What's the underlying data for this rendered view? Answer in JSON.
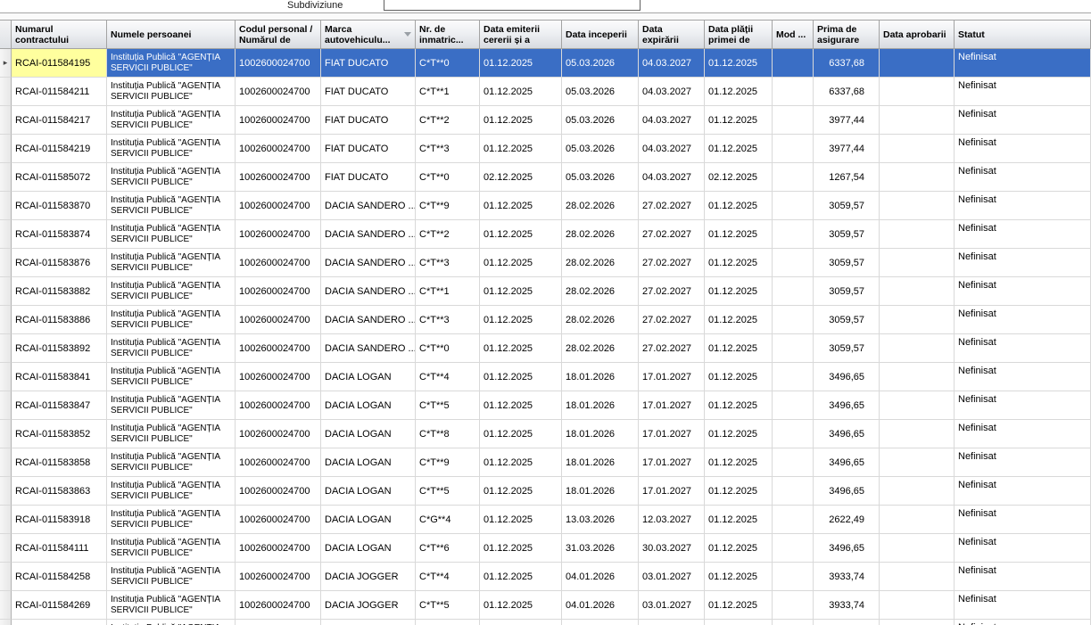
{
  "toolbar": {
    "subdivision_label": "Subdiviziune",
    "subdivision_value": ""
  },
  "table": {
    "selected_row_index": 0,
    "selection_colors": {
      "row_bg": "#3A6EC5",
      "row_text": "#FFFFFF",
      "focused_cell_bg": "#FFFF9E"
    },
    "grid_line_color": "#D9D9D9",
    "columns": [
      {
        "key": "contract",
        "label": "Numarul contractului"
      },
      {
        "key": "name",
        "label": "Numele persoanei"
      },
      {
        "key": "code",
        "label": "Codul personal / Numărul de"
      },
      {
        "key": "marca",
        "label": "Marca autovehiculu...",
        "sort": "desc"
      },
      {
        "key": "nr",
        "label": "Nr. de inmatric..."
      },
      {
        "key": "emiterii",
        "label": "Data emiterii cererii și a"
      },
      {
        "key": "inceperii",
        "label": "Data inceperii"
      },
      {
        "key": "expirarii",
        "label": "Data expirării"
      },
      {
        "key": "platii",
        "label": "Data plății primei de"
      },
      {
        "key": "mod",
        "label": "Mod ..."
      },
      {
        "key": "prima",
        "label": "Prima de asigurare"
      },
      {
        "key": "aprobarii",
        "label": "Data aprobarii"
      },
      {
        "key": "statut",
        "label": "Statut"
      }
    ],
    "rows": [
      {
        "contract": "RCAI-011584195",
        "name": "Instituția Publică \"AGENȚIA SERVICII PUBLICE\"",
        "code": "1002600024700",
        "marca": "FIAT DUCATO",
        "nr": "C*T**0",
        "emiterii": "01.12.2025",
        "inceperii": "05.03.2026",
        "expirarii": "04.03.2027",
        "platii": "01.12.2025",
        "mod": "",
        "prima": "6337,68",
        "aprobarii": "",
        "statut": "Nefinisat"
      },
      {
        "contract": "RCAI-011584211",
        "name": "Instituția Publică \"AGENȚIA SERVICII PUBLICE\"",
        "code": "1002600024700",
        "marca": "FIAT DUCATO",
        "nr": "C*T**1",
        "emiterii": "01.12.2025",
        "inceperii": "05.03.2026",
        "expirarii": "04.03.2027",
        "platii": "01.12.2025",
        "mod": "",
        "prima": "6337,68",
        "aprobarii": "",
        "statut": "Nefinisat"
      },
      {
        "contract": "RCAI-011584217",
        "name": "Instituția Publică \"AGENȚIA SERVICII PUBLICE\"",
        "code": "1002600024700",
        "marca": "FIAT DUCATO",
        "nr": "C*T**2",
        "emiterii": "01.12.2025",
        "inceperii": "05.03.2026",
        "expirarii": "04.03.2027",
        "platii": "01.12.2025",
        "mod": "",
        "prima": "3977,44",
        "aprobarii": "",
        "statut": "Nefinisat"
      },
      {
        "contract": "RCAI-011584219",
        "name": "Instituția Publică \"AGENȚIA SERVICII PUBLICE\"",
        "code": "1002600024700",
        "marca": "FIAT DUCATO",
        "nr": "C*T**3",
        "emiterii": "01.12.2025",
        "inceperii": "05.03.2026",
        "expirarii": "04.03.2027",
        "platii": "01.12.2025",
        "mod": "",
        "prima": "3977,44",
        "aprobarii": "",
        "statut": "Nefinisat"
      },
      {
        "contract": "RCAI-011585072",
        "name": "Instituția Publică \"AGENȚIA SERVICII PUBLICE\"",
        "code": "1002600024700",
        "marca": "FIAT DUCATO",
        "nr": "C*T**0",
        "emiterii": "02.12.2025",
        "inceperii": "05.03.2026",
        "expirarii": "04.03.2027",
        "platii": "02.12.2025",
        "mod": "",
        "prima": "1267,54",
        "aprobarii": "",
        "statut": "Nefinisat"
      },
      {
        "contract": "RCAI-011583870",
        "name": "Instituția Publică \"AGENȚIA SERVICII PUBLICE\"",
        "code": "1002600024700",
        "marca": "DACIA SANDERO ...",
        "nr": "C*T**9",
        "emiterii": "01.12.2025",
        "inceperii": "28.02.2026",
        "expirarii": "27.02.2027",
        "platii": "01.12.2025",
        "mod": "",
        "prima": "3059,57",
        "aprobarii": "",
        "statut": "Nefinisat"
      },
      {
        "contract": "RCAI-011583874",
        "name": "Instituția Publică \"AGENȚIA SERVICII PUBLICE\"",
        "code": "1002600024700",
        "marca": "DACIA SANDERO ...",
        "nr": "C*T**2",
        "emiterii": "01.12.2025",
        "inceperii": "28.02.2026",
        "expirarii": "27.02.2027",
        "platii": "01.12.2025",
        "mod": "",
        "prima": "3059,57",
        "aprobarii": "",
        "statut": "Nefinisat"
      },
      {
        "contract": "RCAI-011583876",
        "name": "Instituția Publică \"AGENȚIA SERVICII PUBLICE\"",
        "code": "1002600024700",
        "marca": "DACIA SANDERO ...",
        "nr": "C*T**3",
        "emiterii": "01.12.2025",
        "inceperii": "28.02.2026",
        "expirarii": "27.02.2027",
        "platii": "01.12.2025",
        "mod": "",
        "prima": "3059,57",
        "aprobarii": "",
        "statut": "Nefinisat"
      },
      {
        "contract": "RCAI-011583882",
        "name": "Instituția Publică \"AGENȚIA SERVICII PUBLICE\"",
        "code": "1002600024700",
        "marca": "DACIA SANDERO ...",
        "nr": "C*T**1",
        "emiterii": "01.12.2025",
        "inceperii": "28.02.2026",
        "expirarii": "27.02.2027",
        "platii": "01.12.2025",
        "mod": "",
        "prima": "3059,57",
        "aprobarii": "",
        "statut": "Nefinisat"
      },
      {
        "contract": "RCAI-011583886",
        "name": "Instituția Publică \"AGENȚIA SERVICII PUBLICE\"",
        "code": "1002600024700",
        "marca": "DACIA SANDERO ...",
        "nr": "C*T**3",
        "emiterii": "01.12.2025",
        "inceperii": "28.02.2026",
        "expirarii": "27.02.2027",
        "platii": "01.12.2025",
        "mod": "",
        "prima": "3059,57",
        "aprobarii": "",
        "statut": "Nefinisat"
      },
      {
        "contract": "RCAI-011583892",
        "name": "Instituția Publică \"AGENȚIA SERVICII PUBLICE\"",
        "code": "1002600024700",
        "marca": "DACIA SANDERO ...",
        "nr": "C*T**0",
        "emiterii": "01.12.2025",
        "inceperii": "28.02.2026",
        "expirarii": "27.02.2027",
        "platii": "01.12.2025",
        "mod": "",
        "prima": "3059,57",
        "aprobarii": "",
        "statut": "Nefinisat"
      },
      {
        "contract": "RCAI-011583841",
        "name": "Instituția Publică \"AGENȚIA SERVICII PUBLICE\"",
        "code": "1002600024700",
        "marca": "DACIA LOGAN",
        "nr": "C*T**4",
        "emiterii": "01.12.2025",
        "inceperii": "18.01.2026",
        "expirarii": "17.01.2027",
        "platii": "01.12.2025",
        "mod": "",
        "prima": "3496,65",
        "aprobarii": "",
        "statut": "Nefinisat"
      },
      {
        "contract": "RCAI-011583847",
        "name": "Instituția Publică \"AGENȚIA SERVICII PUBLICE\"",
        "code": "1002600024700",
        "marca": "DACIA LOGAN",
        "nr": "C*T**5",
        "emiterii": "01.12.2025",
        "inceperii": "18.01.2026",
        "expirarii": "17.01.2027",
        "platii": "01.12.2025",
        "mod": "",
        "prima": "3496,65",
        "aprobarii": "",
        "statut": "Nefinisat"
      },
      {
        "contract": "RCAI-011583852",
        "name": "Instituția Publică \"AGENȚIA SERVICII PUBLICE\"",
        "code": "1002600024700",
        "marca": "DACIA LOGAN",
        "nr": "C*T**8",
        "emiterii": "01.12.2025",
        "inceperii": "18.01.2026",
        "expirarii": "17.01.2027",
        "platii": "01.12.2025",
        "mod": "",
        "prima": "3496,65",
        "aprobarii": "",
        "statut": "Nefinisat"
      },
      {
        "contract": "RCAI-011583858",
        "name": "Instituția Publică \"AGENȚIA SERVICII PUBLICE\"",
        "code": "1002600024700",
        "marca": "DACIA LOGAN",
        "nr": "C*T**9",
        "emiterii": "01.12.2025",
        "inceperii": "18.01.2026",
        "expirarii": "17.01.2027",
        "platii": "01.12.2025",
        "mod": "",
        "prima": "3496,65",
        "aprobarii": "",
        "statut": "Nefinisat"
      },
      {
        "contract": "RCAI-011583863",
        "name": "Instituția Publică \"AGENȚIA SERVICII PUBLICE\"",
        "code": "1002600024700",
        "marca": "DACIA LOGAN",
        "nr": "C*T**5",
        "emiterii": "01.12.2025",
        "inceperii": "18.01.2026",
        "expirarii": "17.01.2027",
        "platii": "01.12.2025",
        "mod": "",
        "prima": "3496,65",
        "aprobarii": "",
        "statut": "Nefinisat"
      },
      {
        "contract": "RCAI-011583918",
        "name": "Instituția Publică \"AGENȚIA SERVICII PUBLICE\"",
        "code": "1002600024700",
        "marca": "DACIA LOGAN",
        "nr": "C*G**4",
        "emiterii": "01.12.2025",
        "inceperii": "13.03.2026",
        "expirarii": "12.03.2027",
        "platii": "01.12.2025",
        "mod": "",
        "prima": "2622,49",
        "aprobarii": "",
        "statut": "Nefinisat"
      },
      {
        "contract": "RCAI-011584111",
        "name": "Instituția Publică \"AGENȚIA SERVICII PUBLICE\"",
        "code": "1002600024700",
        "marca": "DACIA LOGAN",
        "nr": "C*T**6",
        "emiterii": "01.12.2025",
        "inceperii": "31.03.2026",
        "expirarii": "30.03.2027",
        "platii": "01.12.2025",
        "mod": "",
        "prima": "3496,65",
        "aprobarii": "",
        "statut": "Nefinisat"
      },
      {
        "contract": "RCAI-011584258",
        "name": "Instituția Publică \"AGENȚIA SERVICII PUBLICE\"",
        "code": "1002600024700",
        "marca": "DACIA JOGGER",
        "nr": "C*T**4",
        "emiterii": "01.12.2025",
        "inceperii": "04.01.2026",
        "expirarii": "03.01.2027",
        "platii": "01.12.2025",
        "mod": "",
        "prima": "3933,74",
        "aprobarii": "",
        "statut": "Nefinisat"
      },
      {
        "contract": "RCAI-011584269",
        "name": "Instituția Publică \"AGENȚIA SERVICII PUBLICE\"",
        "code": "1002600024700",
        "marca": "DACIA JOGGER",
        "nr": "C*T**5",
        "emiterii": "01.12.2025",
        "inceperii": "04.01.2026",
        "expirarii": "03.01.2027",
        "platii": "01.12.2025",
        "mod": "",
        "prima": "3933,74",
        "aprobarii": "",
        "statut": "Nefinisat"
      },
      {
        "contract": "",
        "name": "Instituția Publică \"AGENȚIA SERVICII PUBLICE\"",
        "code": "",
        "marca": "",
        "nr": "",
        "emiterii": "",
        "inceperii": "",
        "expirarii": "",
        "platii": "",
        "mod": "",
        "prima": "",
        "aprobarii": "",
        "statut": "Nefinisat"
      }
    ]
  }
}
